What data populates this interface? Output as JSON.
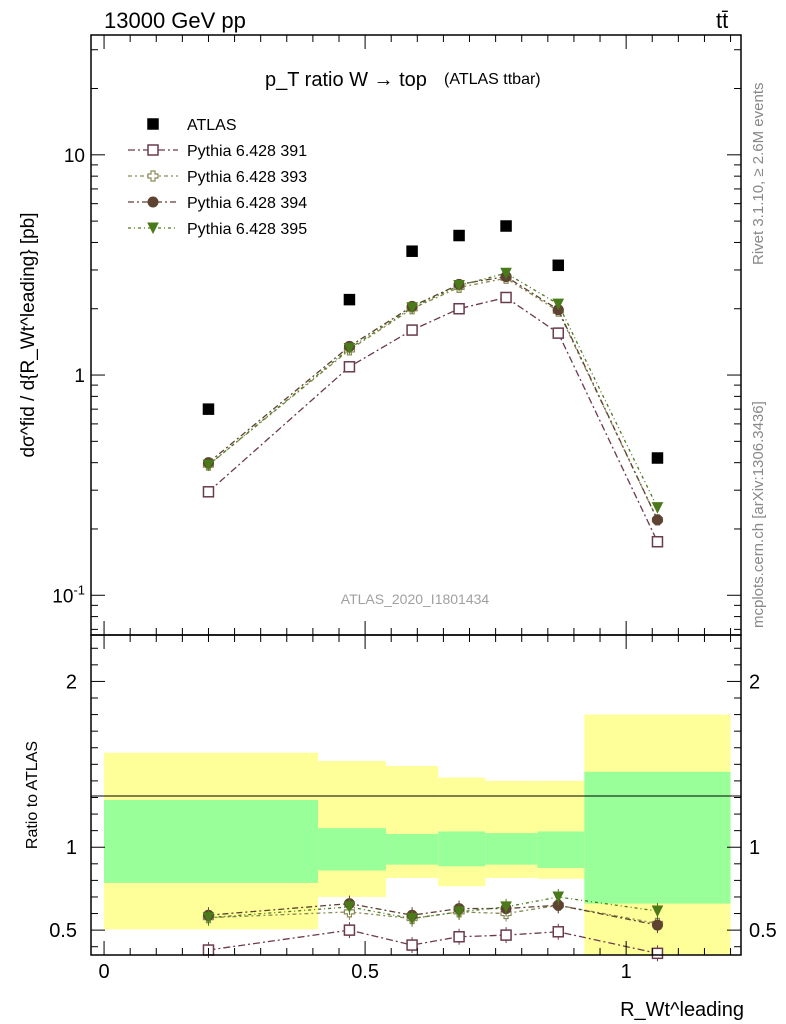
{
  "header": {
    "energy": "13000 GeV pp",
    "process": "tt̄"
  },
  "side_labels": {
    "rivet": "Rivet 3.1.10, ≥ 2.6M events",
    "mcplots": "mcplots.cern.ch [arXiv:1306.3436]"
  },
  "colors": {
    "atlas": "#000000",
    "p391": "#6b3a4e",
    "p393": "#8a8a55",
    "p394": "#5e4232",
    "p395": "#4a7a1a",
    "band_outer": "#ffff99",
    "band_inner": "#99ff99"
  },
  "chart_data": [
    {
      "type": "scatter",
      "title": "p_T ratio W → top",
      "title_suffix": "(ATLAS ttbar)",
      "ylabel": "dσ^fid / d{R_Wt^leading} [pb]",
      "analysis_label": "ATLAS_2020_I1801434",
      "y_scale": "log",
      "ylim": [
        0.066,
        35
      ],
      "xlim": [
        -0.025,
        1.22
      ],
      "ytick_labels": [
        "10^-1",
        "1",
        "10"
      ],
      "legend_position": "top-left",
      "x": [
        0.2,
        0.47,
        0.59,
        0.68,
        0.77,
        0.87,
        1.06
      ],
      "series": [
        {
          "name": "ATLAS",
          "marker": "filled-square",
          "values": [
            0.7,
            2.2,
            3.65,
            4.3,
            4.75,
            3.15,
            0.42
          ]
        },
        {
          "name": "Pythia 6.428 391",
          "marker": "open-square",
          "values": [
            0.295,
            1.09,
            1.6,
            2.0,
            2.25,
            1.55,
            0.175
          ]
        },
        {
          "name": "Pythia 6.428 393",
          "marker": "open-cross",
          "values": [
            0.39,
            1.3,
            2.0,
            2.5,
            2.75,
            1.95,
            0.22
          ]
        },
        {
          "name": "Pythia 6.428 394",
          "marker": "filled-circle",
          "values": [
            0.4,
            1.35,
            2.05,
            2.58,
            2.8,
            1.98,
            0.22
          ]
        },
        {
          "name": "Pythia 6.428 395",
          "marker": "filled-triangle-down",
          "values": [
            0.39,
            1.32,
            2.02,
            2.55,
            2.9,
            2.1,
            0.25
          ]
        }
      ]
    },
    {
      "type": "scatter",
      "ylabel": "Ratio to ATLAS",
      "xlabel": "R_Wt^leading",
      "ylim": [
        0.35,
        2.28
      ],
      "xlim": [
        -0.025,
        1.22
      ],
      "x_ticks": [
        0,
        0.5,
        1
      ],
      "x_tick_labels": [
        "0",
        "0.5",
        "1"
      ],
      "y_ticks": [
        0.5,
        1,
        2
      ],
      "y_tick_labels": [
        "0.5",
        "1",
        "2"
      ],
      "bands": [
        {
          "x_range": [
            0.0,
            0.41
          ],
          "outer": [
            0.505,
            1.57
          ],
          "inner": [
            0.785,
            1.285
          ]
        },
        {
          "x_range": [
            0.41,
            0.54
          ],
          "outer": [
            0.7,
            1.52
          ],
          "inner": [
            0.86,
            1.115
          ]
        },
        {
          "x_range": [
            0.54,
            0.64
          ],
          "outer": [
            0.815,
            1.49
          ],
          "inner": [
            0.895,
            1.08
          ]
        },
        {
          "x_range": [
            0.64,
            0.73
          ],
          "outer": [
            0.765,
            1.42
          ],
          "inner": [
            0.885,
            1.095
          ]
        },
        {
          "x_range": [
            0.73,
            0.83
          ],
          "outer": [
            0.815,
            1.4
          ],
          "inner": [
            0.895,
            1.085
          ]
        },
        {
          "x_range": [
            0.83,
            0.92
          ],
          "outer": [
            0.81,
            1.4
          ],
          "inner": [
            0.875,
            1.095
          ]
        },
        {
          "x_range": [
            0.92,
            1.2
          ],
          "outer": [
            0.35,
            1.8
          ],
          "inner": [
            0.66,
            1.455
          ]
        }
      ],
      "x": [
        0.2,
        0.47,
        0.59,
        0.68,
        0.77,
        0.87,
        1.06
      ],
      "series": [
        {
          "name": "Pythia 6.428 391",
          "marker": "open-square",
          "values": [
            0.38,
            0.5,
            0.41,
            0.46,
            0.47,
            0.49,
            0.36
          ]
        },
        {
          "name": "Pythia 6.428 393",
          "marker": "open-cross",
          "values": [
            0.575,
            0.61,
            0.57,
            0.61,
            0.6,
            0.65,
            0.54
          ]
        },
        {
          "name": "Pythia 6.428 394",
          "marker": "filled-circle",
          "values": [
            0.59,
            0.66,
            0.59,
            0.63,
            0.63,
            0.65,
            0.53
          ]
        },
        {
          "name": "Pythia 6.428 395",
          "marker": "filled-triangle-down",
          "values": [
            0.575,
            0.64,
            0.57,
            0.61,
            0.64,
            0.7,
            0.615
          ]
        }
      ]
    }
  ]
}
